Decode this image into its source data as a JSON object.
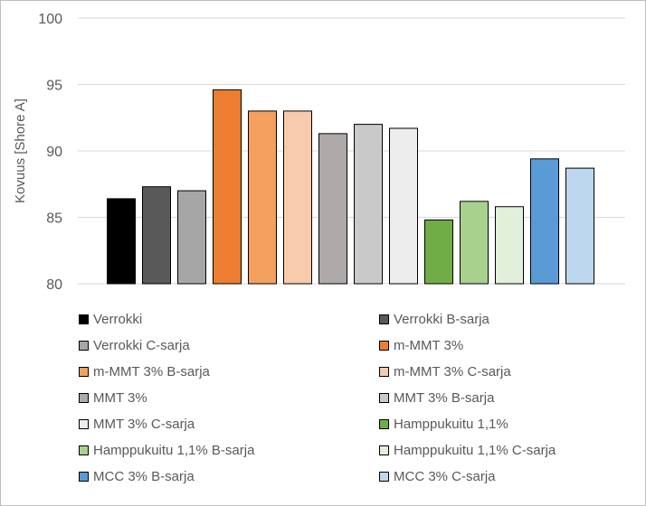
{
  "chart_data": {
    "type": "bar",
    "ylabel": "Kovuus [Shore A]",
    "ylim": [
      80,
      100
    ],
    "yticks": [
      80,
      85,
      90,
      95,
      100
    ],
    "grid": true,
    "legend_position": "bottom",
    "series": [
      {
        "name": "Verrokki",
        "value": 86.4,
        "color": "#000000"
      },
      {
        "name": "Verrokki B-sarja",
        "value": 87.3,
        "color": "#595959"
      },
      {
        "name": "Verrokki C-sarja",
        "value": 87.0,
        "color": "#a6a6a6"
      },
      {
        "name": "m-MMT 3%",
        "value": 94.6,
        "color": "#ed7d31"
      },
      {
        "name": "m-MMT 3% B-sarja",
        "value": 93.0,
        "color": "#f4a15f"
      },
      {
        "name": "m-MMT 3% C-sarja",
        "value": 93.0,
        "color": "#f8cbad"
      },
      {
        "name": "MMT 3%",
        "value": 91.3,
        "color": "#aeaaaa"
      },
      {
        "name": "MMT 3% B-sarja",
        "value": 92.0,
        "color": "#c9c9c9"
      },
      {
        "name": "MMT 3% C-sarja",
        "value": 91.7,
        "color": "#ededed"
      },
      {
        "name": "Hamppukuitu 1,1%",
        "value": 84.8,
        "color": "#70ad47"
      },
      {
        "name": "Hamppukuitu 1,1% B-sarja",
        "value": 86.2,
        "color": "#a9d18e"
      },
      {
        "name": "Hamppukuitu 1,1% C-sarja",
        "value": 85.8,
        "color": "#e2efda"
      },
      {
        "name": "MCC 3% B-sarja",
        "value": 89.4,
        "color": "#5b9bd5"
      },
      {
        "name": "MCC 3% C-sarja",
        "value": 88.7,
        "color": "#bdd7ee"
      }
    ]
  }
}
